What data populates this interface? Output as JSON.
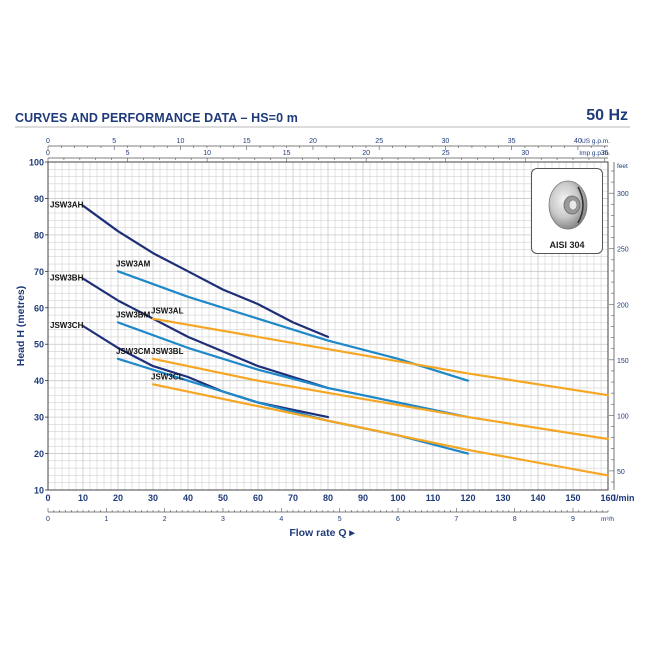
{
  "header": {
    "title": "CURVES AND PERFORMANCE DATA  –  HS=0 m",
    "frequency": "50 Hz"
  },
  "inset": {
    "label": "AISI 304",
    "icon": "impeller-icon"
  },
  "chart_data": {
    "type": "line",
    "title": "CURVES AND PERFORMANCE DATA  –  HS=0 m",
    "xlabel": "Flow rate Q",
    "ylabel": "Head H (metres)",
    "xlim": [
      0,
      160
    ],
    "ylim": [
      10,
      100
    ],
    "grid": true,
    "x_unit_label": "l/min",
    "x_ticks": [
      0,
      10,
      20,
      30,
      40,
      50,
      60,
      70,
      80,
      90,
      100,
      110,
      120,
      130,
      140,
      150,
      160
    ],
    "y_ticks": [
      10,
      20,
      30,
      40,
      50,
      60,
      70,
      80,
      90,
      100
    ],
    "secondary_axes": {
      "us_gpm": {
        "label": "US g.p.m.",
        "ticks": [
          "0",
          "5",
          "10",
          "15",
          "20",
          "25",
          "30",
          "35",
          "40"
        ]
      },
      "imp_gpm": {
        "label": "Imp g.p.m.",
        "ticks": [
          "0",
          "5",
          "10",
          "15",
          "20",
          "25",
          "30",
          "35"
        ]
      },
      "m3h": {
        "label": "m³/h",
        "ticks": [
          "0",
          "1",
          "2",
          "3",
          "4",
          "5",
          "6",
          "7",
          "8",
          "9"
        ]
      },
      "feet": {
        "label": "feet",
        "ticks": [
          "50",
          "100",
          "150",
          "200",
          "250",
          "300"
        ]
      }
    },
    "colors": {
      "dark": "#1e2f78",
      "medium": "#1e88c8",
      "orange": "#f5a623",
      "axis_text": "#1f3a7a"
    },
    "series": [
      {
        "name": "JSW3AH",
        "color_key": "dark",
        "x": [
          10,
          20,
          30,
          40,
          50,
          60,
          70,
          80
        ],
        "y": [
          88,
          81,
          75,
          70,
          65,
          61,
          56,
          52
        ]
      },
      {
        "name": "JSW3BH",
        "color_key": "dark",
        "x": [
          10,
          20,
          30,
          40,
          50,
          60,
          70,
          80
        ],
        "y": [
          68,
          62,
          57,
          52,
          48,
          44,
          41,
          38
        ]
      },
      {
        "name": "JSW3CH",
        "color_key": "dark",
        "x": [
          10,
          20,
          30,
          40,
          50,
          60,
          70,
          80
        ],
        "y": [
          55,
          49,
          44,
          41,
          37,
          34,
          32,
          30
        ]
      },
      {
        "name": "JSW3AM",
        "color_key": "medium",
        "x": [
          20,
          40,
          60,
          80,
          100,
          120
        ],
        "y": [
          70,
          63,
          57,
          51,
          46,
          40
        ]
      },
      {
        "name": "JSW3BM",
        "color_key": "medium",
        "x": [
          20,
          40,
          60,
          80,
          100,
          120
        ],
        "y": [
          56,
          49,
          43,
          38,
          34,
          30
        ]
      },
      {
        "name": "JSW3CM",
        "color_key": "medium",
        "x": [
          20,
          40,
          60,
          80,
          100,
          120
        ],
        "y": [
          46,
          40,
          34,
          29,
          25,
          20
        ]
      },
      {
        "name": "JSW3AL",
        "color_key": "orange",
        "x": [
          30,
          60,
          90,
          120,
          160
        ],
        "y": [
          57,
          52,
          47,
          42,
          36
        ]
      },
      {
        "name": "JSW3BL",
        "color_key": "orange",
        "x": [
          30,
          60,
          90,
          120,
          160
        ],
        "y": [
          46,
          40,
          35,
          30,
          24
        ]
      },
      {
        "name": "JSW3CL",
        "color_key": "orange",
        "x": [
          30,
          60,
          90,
          120,
          160
        ],
        "y": [
          39,
          33,
          27,
          21,
          14
        ]
      }
    ]
  }
}
